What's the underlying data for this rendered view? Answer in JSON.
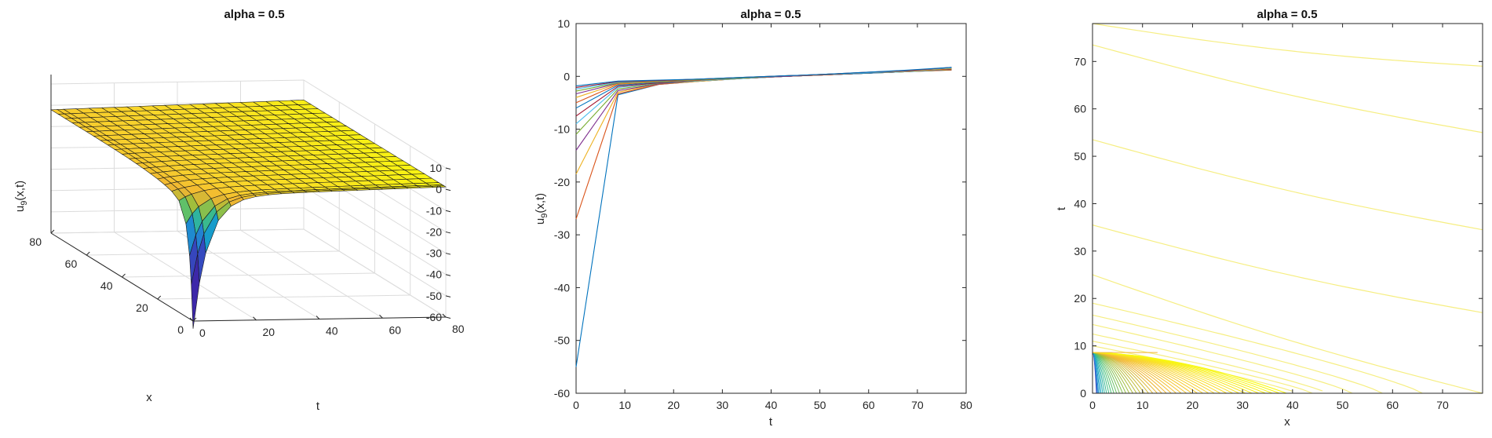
{
  "chart_data": [
    {
      "type": "surface",
      "title": "alpha = 0.5",
      "xlabel": "x",
      "ylabel": "t",
      "zlabel": "u_9(x,t)",
      "zlabel_base": "u",
      "zlabel_sub": "9",
      "zlabel_rest": "(x,t)",
      "xlim": [
        0,
        80
      ],
      "ylim": [
        0,
        80
      ],
      "zlim": [
        -60,
        10
      ],
      "x_ticks": [
        "0",
        "20",
        "40",
        "60",
        "80"
      ],
      "t_ticks": [
        "0",
        "20",
        "40",
        "60",
        "80"
      ],
      "z_ticks": [
        "10",
        "0",
        "-10",
        "-20",
        "-30",
        "-40",
        "-50",
        "-60"
      ],
      "grid": true,
      "surface_min_at": {
        "x": 0,
        "t": 0,
        "u": -55
      },
      "colormap": [
        "#3e26a8",
        "#2d6bd6",
        "#14a4c9",
        "#45c17c",
        "#a4be3a",
        "#f1b532",
        "#f9d52b",
        "#f8fa0d"
      ]
    },
    {
      "type": "line",
      "title": "alpha = 0.5",
      "xlabel": "t",
      "ylabel": "u_9(x,t)",
      "ylabel_base": "u",
      "ylabel_sub": "9",
      "ylabel_rest": "(x,t)",
      "xlim": [
        0,
        80
      ],
      "ylim": [
        -60,
        10
      ],
      "x_ticks": [
        "0",
        "10",
        "20",
        "30",
        "40",
        "50",
        "60",
        "70",
        "80"
      ],
      "y_ticks": [
        "10",
        "0",
        "-10",
        "-20",
        "-30",
        "-40",
        "-50",
        "-60"
      ],
      "t_values": [
        0,
        8.6,
        17.1,
        25.7,
        34.2,
        42.8,
        51.3,
        59.9,
        68.4,
        77
      ],
      "series": [
        {
          "values": [
            -55,
            -3.5,
            -1.5,
            -0.9,
            -0.4,
            0.0,
            0.3,
            0.6,
            0.9,
            1.2
          ]
        },
        {
          "values": [
            -27,
            -3.3,
            -1.5,
            -0.9,
            -0.4,
            0.0,
            0.3,
            0.6,
            0.9,
            1.2
          ]
        },
        {
          "values": [
            -18.5,
            -3.0,
            -1.4,
            -0.9,
            -0.4,
            0.0,
            0.3,
            0.6,
            0.9,
            1.3
          ]
        },
        {
          "values": [
            -14,
            -2.7,
            -1.4,
            -0.8,
            -0.4,
            0.0,
            0.3,
            0.6,
            0.9,
            1.3
          ]
        },
        {
          "values": [
            -11,
            -2.4,
            -1.3,
            -0.8,
            -0.4,
            0.0,
            0.3,
            0.6,
            0.9,
            1.3
          ]
        },
        {
          "values": [
            -9,
            -2.1,
            -1.2,
            -0.8,
            -0.4,
            0.0,
            0.3,
            0.6,
            0.9,
            1.4
          ]
        },
        {
          "values": [
            -7.5,
            -1.9,
            -1.2,
            -0.7,
            -0.3,
            0.0,
            0.3,
            0.6,
            1.0,
            1.4
          ]
        },
        {
          "values": [
            -6,
            -1.7,
            -1.1,
            -0.7,
            -0.3,
            0.0,
            0.3,
            0.6,
            1.0,
            1.5
          ]
        },
        {
          "values": [
            -5,
            -1.5,
            -1.0,
            -0.7,
            -0.3,
            0.0,
            0.3,
            0.7,
            1.0,
            1.5
          ]
        },
        {
          "values": [
            -4,
            -1.4,
            -1.0,
            -0.6,
            -0.3,
            0.0,
            0.4,
            0.7,
            1.0,
            1.5
          ]
        },
        {
          "values": [
            -3.3,
            -1.3,
            -0.9,
            -0.6,
            -0.3,
            0.0,
            0.4,
            0.7,
            1.1,
            1.6
          ]
        },
        {
          "values": [
            -2.8,
            -1.2,
            -0.9,
            -0.6,
            -0.3,
            0.1,
            0.4,
            0.7,
            1.1,
            1.6
          ]
        },
        {
          "values": [
            -2.4,
            -1.1,
            -0.8,
            -0.5,
            -0.2,
            0.1,
            0.4,
            0.7,
            1.1,
            1.6
          ]
        },
        {
          "values": [
            -2.1,
            -1.0,
            -0.8,
            -0.5,
            -0.2,
            0.1,
            0.4,
            0.8,
            1.1,
            1.7
          ]
        },
        {
          "values": [
            -1.8,
            -0.9,
            -0.7,
            -0.5,
            -0.2,
            0.1,
            0.4,
            0.8,
            1.2,
            1.7
          ]
        }
      ],
      "line_colors": [
        "#0072bd",
        "#d95319",
        "#edb120",
        "#7e2f8e",
        "#77ac30",
        "#4dbeee",
        "#a2142f"
      ]
    },
    {
      "type": "contour",
      "title": "alpha = 0.5",
      "xlabel": "x",
      "ylabel": "t",
      "xlim": [
        0,
        78
      ],
      "ylim": [
        0,
        78
      ],
      "x_ticks": [
        "0",
        "10",
        "20",
        "30",
        "40",
        "50",
        "60",
        "70"
      ],
      "y_ticks": [
        "0",
        "10",
        "20",
        "30",
        "40",
        "50",
        "60",
        "70"
      ],
      "contour_levels_t_at_x0": [
        78,
        73.5,
        53.5,
        35.5,
        25,
        19,
        16.5,
        14.5,
        12.5,
        11,
        10
      ],
      "contour_levels_t_at_x78": [
        69,
        55,
        34.5,
        17,
        0
      ],
      "fan_origin": {
        "x": 0,
        "t": 8.6
      },
      "colormap": [
        "#3e26a8",
        "#2d6bd6",
        "#14a4c9",
        "#45c17c",
        "#a4be3a",
        "#f1b532",
        "#f9d52b",
        "#f8fa0d"
      ]
    }
  ]
}
